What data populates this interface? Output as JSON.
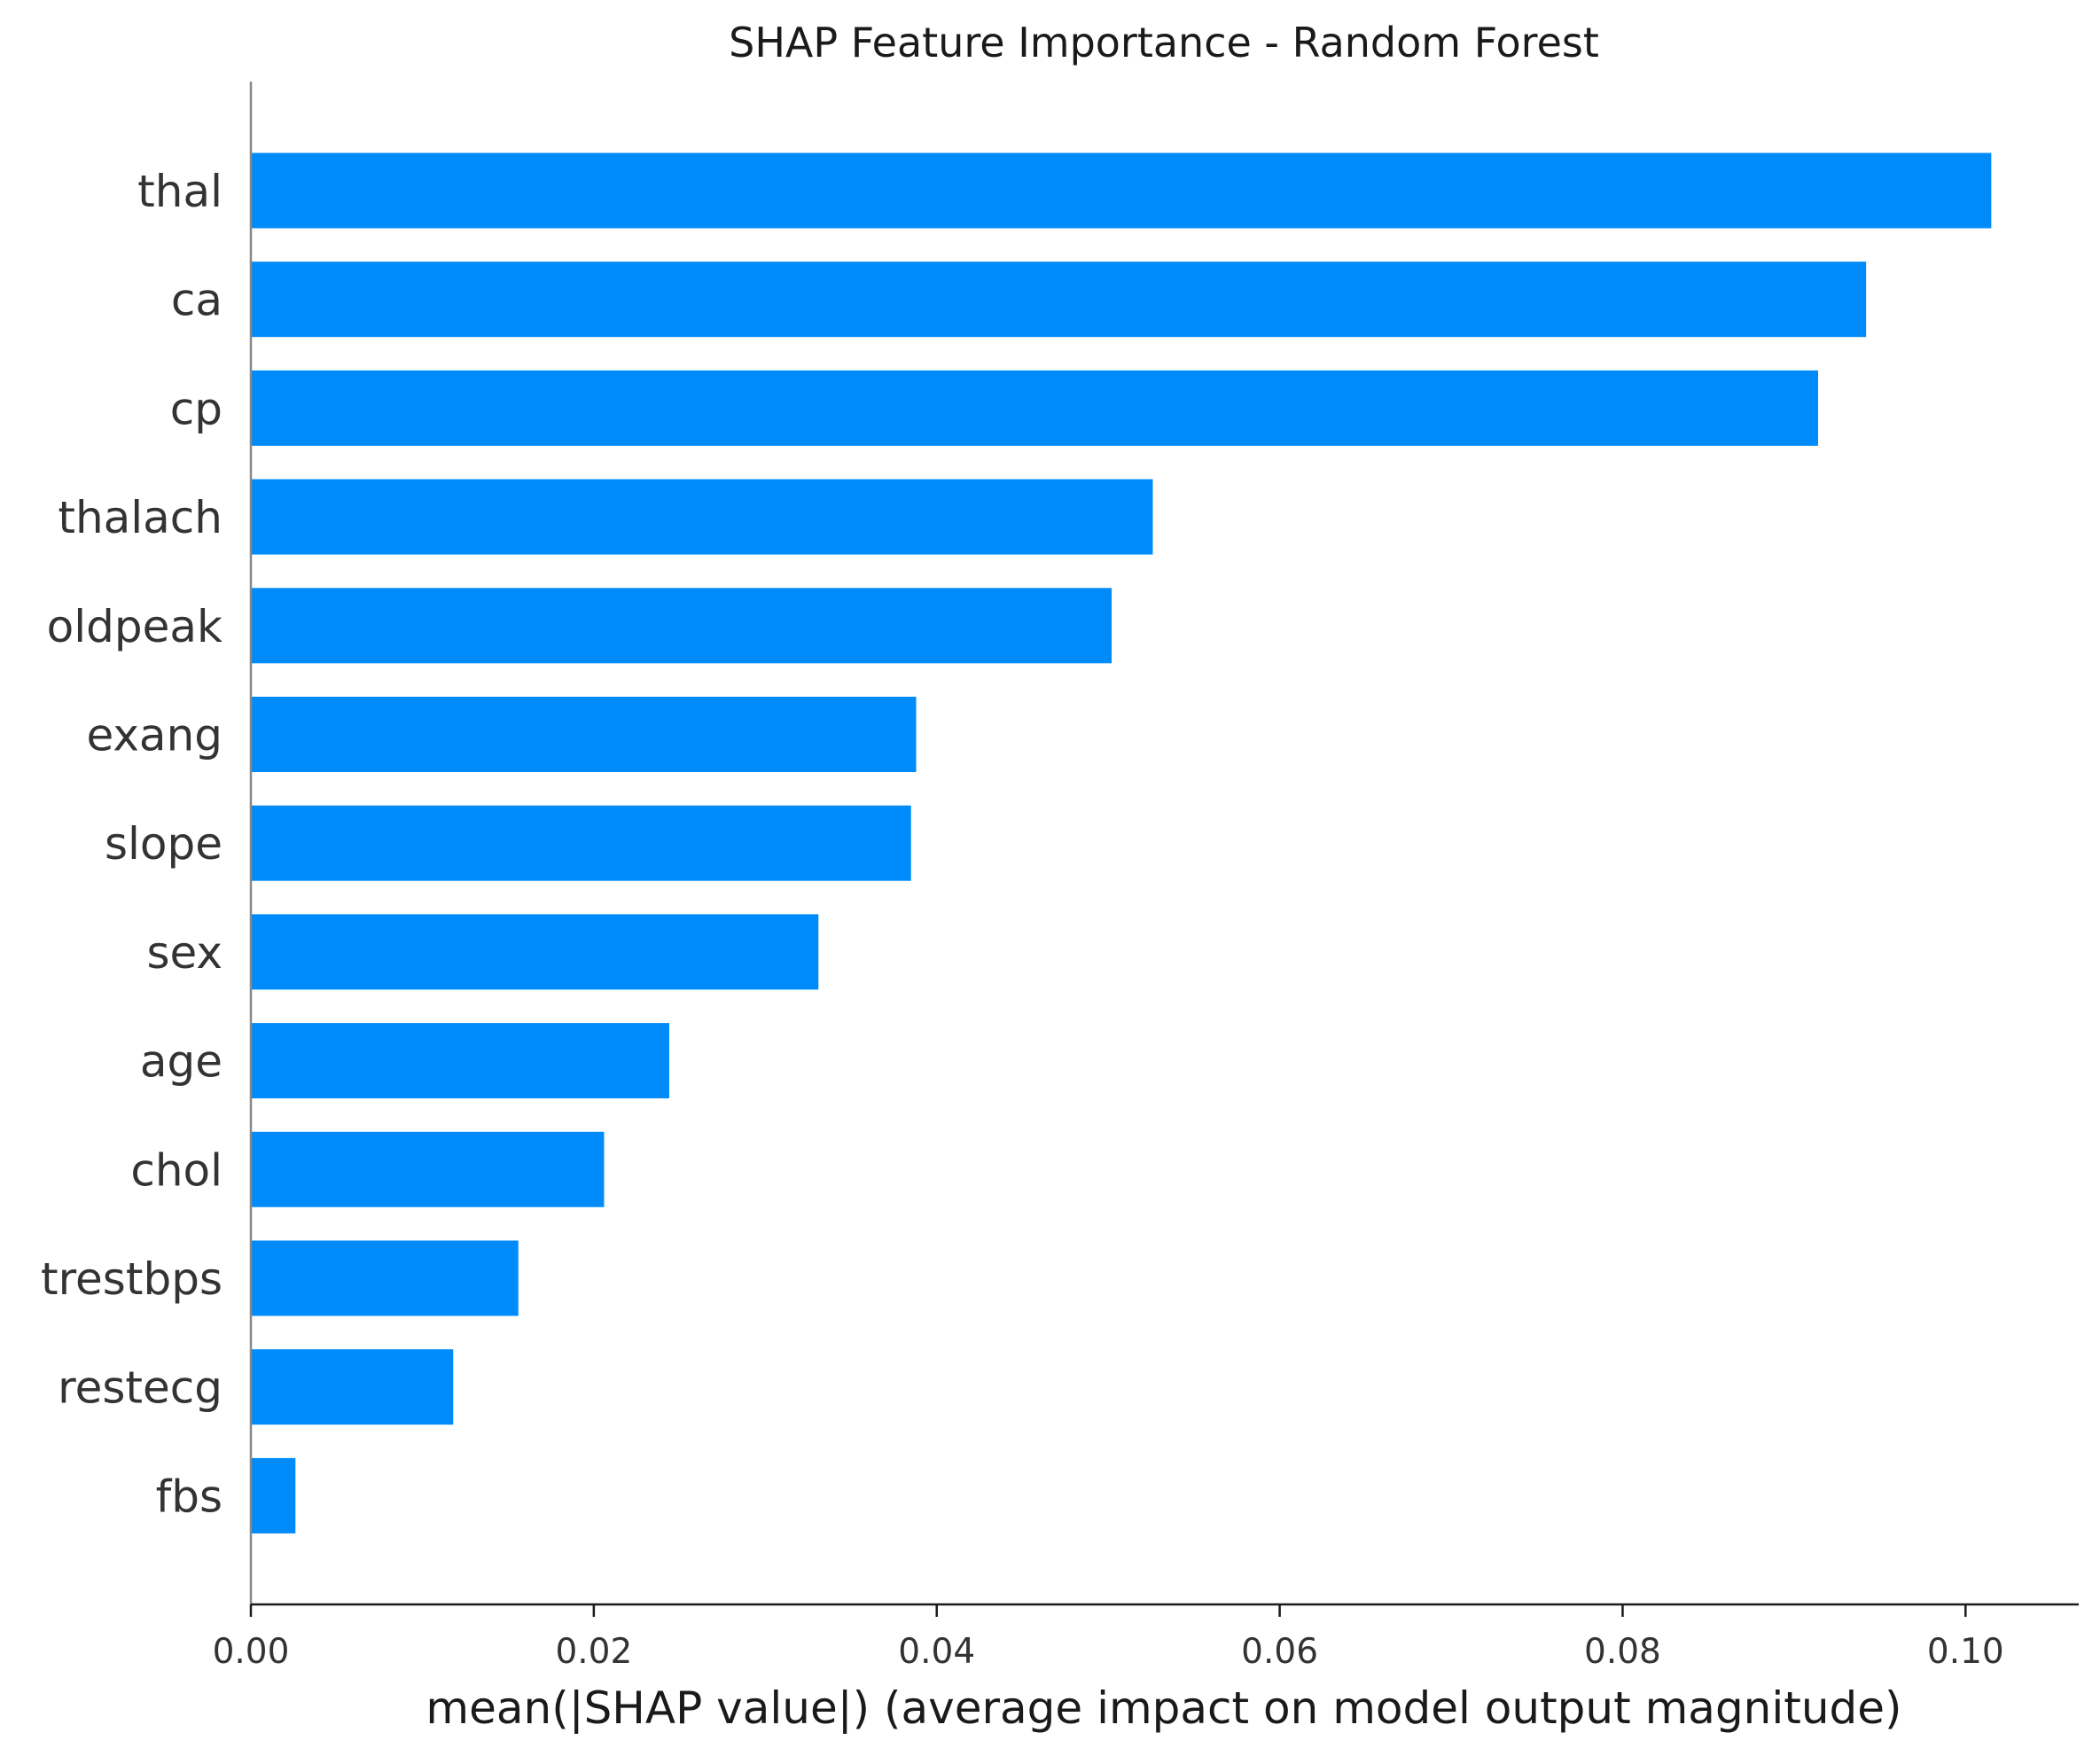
{
  "chart_data": {
    "type": "bar",
    "orientation": "horizontal",
    "title": "SHAP Feature Importance - Random Forest",
    "xlabel": "mean(|SHAP value|) (average impact on model output magnitude)",
    "ylabel": "",
    "categories": [
      "thal",
      "ca",
      "cp",
      "thalach",
      "oldpeak",
      "exang",
      "slope",
      "sex",
      "age",
      "chol",
      "trestbps",
      "restecg",
      "fbs"
    ],
    "values": [
      0.1015,
      0.0942,
      0.0914,
      0.0526,
      0.0502,
      0.0388,
      0.0385,
      0.0331,
      0.0244,
      0.0206,
      0.0156,
      0.0118,
      0.0026
    ],
    "xticks": [
      "0.00",
      "0.02",
      "0.04",
      "0.06",
      "0.08",
      "0.10"
    ],
    "xlim": [
      0,
      0.1066
    ],
    "grid": false,
    "legend": "none",
    "bar_color": "#008bfb"
  }
}
